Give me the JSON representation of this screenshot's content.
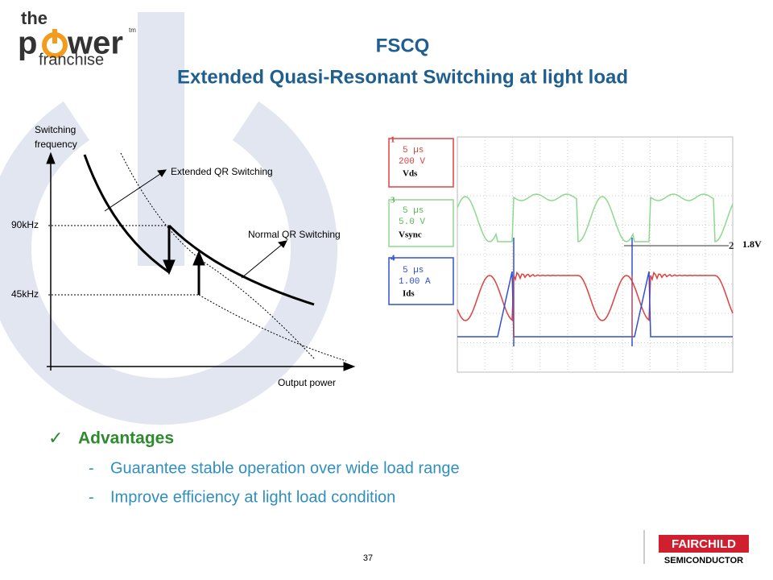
{
  "logo": {
    "the": "the",
    "p": "p",
    "wer": "wer",
    "franchise": "franchise",
    "tm": "tm"
  },
  "title": "FSCQ",
  "subtitle": "Extended Quasi-Resonant Switching at light load",
  "diagram": {
    "y_label": [
      "Switching",
      "frequency"
    ],
    "x_label": "Output power",
    "levels": [
      "90kHz",
      "45kHz"
    ],
    "extended_label": "Extended QR Switching",
    "normal_label": "Normal QR Switching"
  },
  "scope": {
    "channels": [
      {
        "number": "1",
        "time": "5 µs",
        "scale": "200 V",
        "name": "Vds"
      },
      {
        "number": "3",
        "time": "5 µs",
        "scale": "5.0 V",
        "name": "Vsync"
      },
      {
        "number": "4",
        "time": "5 µs",
        "scale": "1.00 A",
        "name": "Ids"
      }
    ],
    "ref_marker": "2",
    "ref_level": "1.8V"
  },
  "advantages": {
    "check": "✓",
    "heading": "Advantages",
    "items": [
      {
        "marker": "-",
        "text": "Guarantee stable operation over wide load range"
      },
      {
        "marker": "-",
        "text": "Improve efficiency at light load condition"
      }
    ]
  },
  "page_number": "37",
  "footer_logo": {
    "name": "FAIRCHILD",
    "sub": "SEMICONDUCTOR"
  }
}
